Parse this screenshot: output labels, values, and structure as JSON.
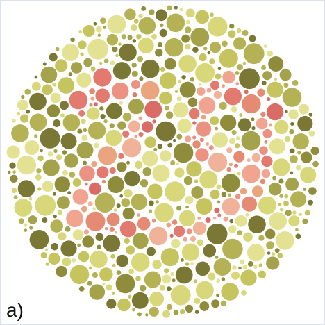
{
  "figure": {
    "label": "a)",
    "plate": {
      "kind": "Ishihara color-vision test plate",
      "hidden_number": "29",
      "background_colors": [
        "#8f8c3c",
        "#a5a24c",
        "#c6c45e",
        "#d8d87a",
        "#e3e192",
        "#b5b255",
        "#7b7835"
      ],
      "figure_colors": [
        "#e27a6f",
        "#eb9282",
        "#f1a48f",
        "#eaa57f",
        "#d96d66",
        "#f0b39a",
        "#e58a73"
      ]
    }
  }
}
